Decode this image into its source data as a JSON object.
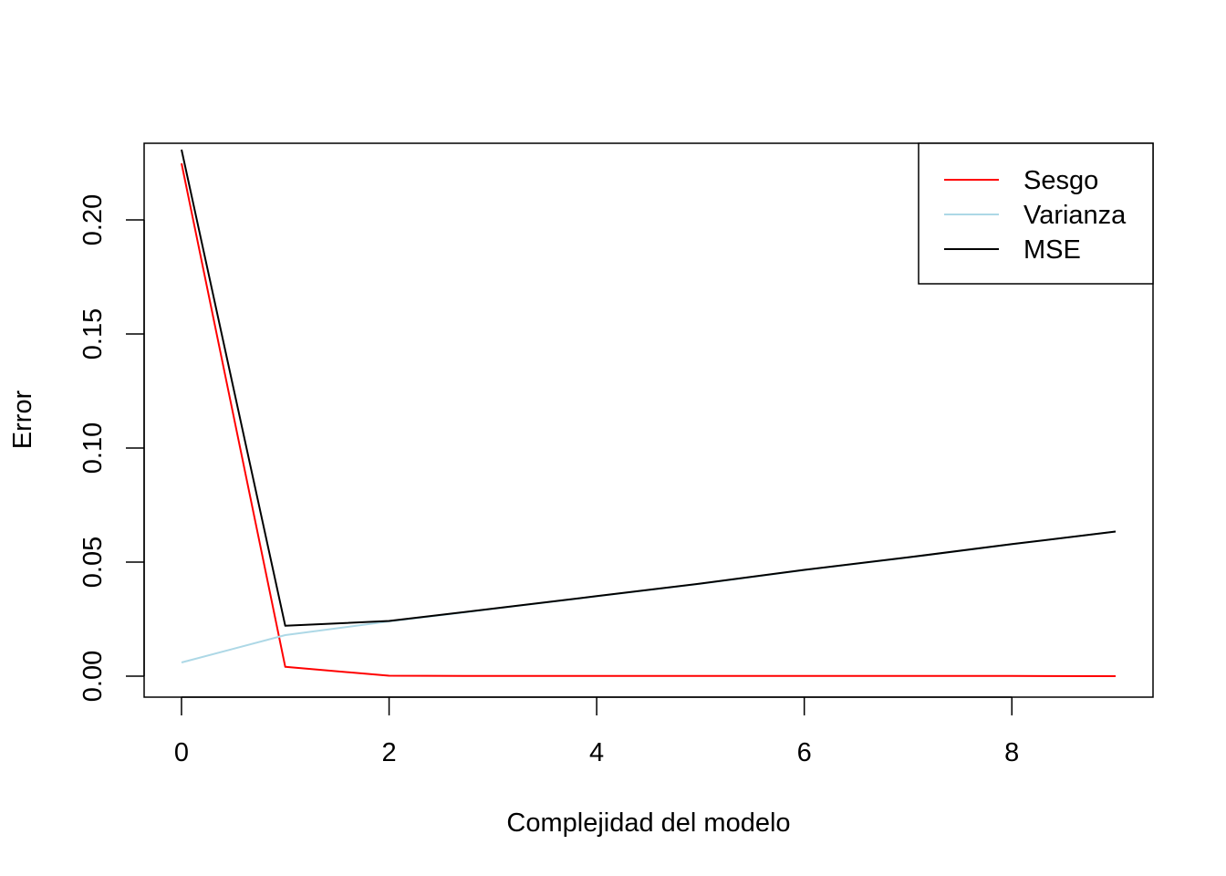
{
  "chart_data": {
    "type": "line",
    "title": "",
    "xlabel": "Complejidad del modelo",
    "ylabel": "Error",
    "xlim": [
      -0.36,
      9.36
    ],
    "ylim": [
      -0.0092,
      0.2336
    ],
    "x_ticks": [
      0,
      2,
      4,
      6,
      8
    ],
    "x_tick_labels": [
      "0",
      "2",
      "4",
      "6",
      "8"
    ],
    "y_ticks": [
      0.0,
      0.05,
      0.1,
      0.15,
      0.2
    ],
    "y_tick_labels": [
      "0.00",
      "0.05",
      "0.10",
      "0.15",
      "0.20"
    ],
    "grid": false,
    "legend_position": "top-right",
    "x": [
      0,
      1,
      2,
      3,
      4,
      5,
      6,
      7,
      8,
      9
    ],
    "series": [
      {
        "name": "Sesgo",
        "color": "#ff0000",
        "values": [
          0.2248,
          0.0041,
          0.0002,
          0.0001,
          0.0001,
          0.0001,
          0.0001,
          0.0001,
          0.0001,
          0.0
        ]
      },
      {
        "name": "Varianza",
        "color": "#add8e6",
        "values": [
          0.006,
          0.018,
          0.024,
          0.0295,
          0.035,
          0.0405,
          0.0465,
          0.052,
          0.0578,
          0.0634
        ]
      },
      {
        "name": "MSE",
        "color": "#000000",
        "values": [
          0.2308,
          0.0221,
          0.0242,
          0.0296,
          0.0351,
          0.0406,
          0.0466,
          0.0521,
          0.0579,
          0.0634
        ]
      }
    ]
  }
}
